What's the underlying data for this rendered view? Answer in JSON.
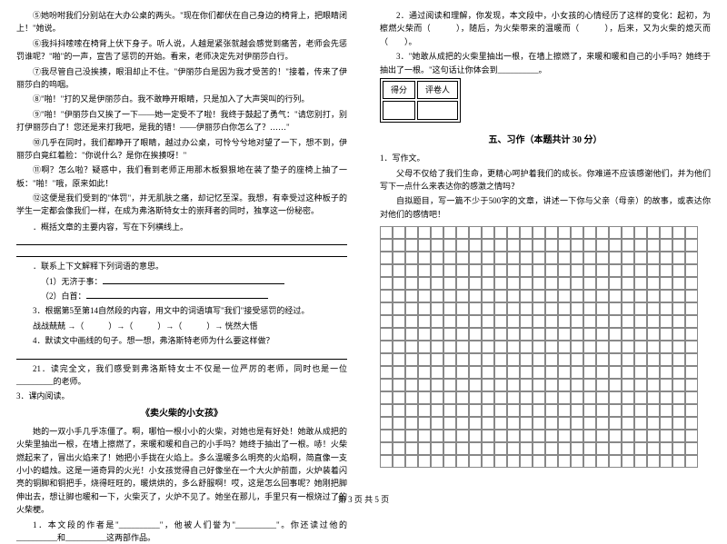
{
  "left": {
    "paragraphs": [
      "⑤她吩咐我们分别站在大办公桌的两头。\"现在你们都伏在自己身边的椅背上，把眼睛闭上！\"她说。",
      "⑥我抖抖嗦嗦在椅背上伏下身子。听人说，人越是紧张就越会感觉到痛苦，老师会先惩罚谁呢？\"啪\"的一声，宣告了惩罚的开始。看来，老师决定先对伊丽莎白行。",
      "⑦我尽管自己没挨揍，眼泪却止不住。\"伊丽莎白是因为我才受苦的！\"接着，传来了伊丽莎白的呜咽。",
      "⑧\"啪！\"打的又是伊丽莎白。我不敢睁开眼睛，只是加入了大声哭叫的行列。",
      "⑨\"啪！\"伊丽莎白又挨了一下——她一定受不了啦！我终于鼓起了勇气：\"请您别打，别打伊丽莎白了！您还是来打我吧，是我的错！——伊丽莎白你怎么了？……\"",
      "⑩几乎在同时，我们都睁开了眼睛，越过办公桌，可怜兮兮地对望了一下，想不到，伊丽莎白竟红着脸：\"你说什么？是你在挨揍呀！\"",
      "⑪啊？怎么啦？疑惑中，我们看到老师正用那木板狠狠地在装了垫子的座椅上抽了一板：\"啪！\"哦，原来如此！",
      "⑫这便是我们受到的\"体罚\"，并无肌肤之痛，却记忆至深。我想，有幸受过这种板子的学生一定都会像我们一样，在成为弗洛斯特女士的崇拜者的同时，独享这一份秘密。"
    ],
    "questions": [
      {
        "num": "1",
        "text": "．概括文章的主要内容，写在下列横线上。"
      },
      {
        "num": "2",
        "text": "．联系上下文解释下列词语的意思。"
      }
    ],
    "subq": [
      "（1）无济于事：",
      "（2）白首："
    ],
    "q3": "3．根据第5至第14自然段的内容，用文中的词语填写\"我们\"接受惩罚的经过。",
    "q3_flow": "战战兢兢 →（　　　）→（　　　）→（　　　）→ 恍然大悟",
    "q4": "4．默读文中画线的句子。想一想，弗洛斯特老师为什么要这样做？",
    "q21": "21．读完全文，我们感受到弗洛斯特女士不仅是一位严厉的老师，同时也是一位_________的老师。",
    "ksec": "3．课内阅读。",
    "story_title": "《卖火柴的小女孩》",
    "story": "她的一双小手几乎冻僵了。啊，哪怕一根小小的火柴，对她也是有好处！她敢从成把的火柴里抽出一根，在墙上擦燃了，来暖和暖和自己的小手吗？她终于抽出了一根。哧！火柴燃起来了，冒出火焰来了！她把小手拢在火焰上。多么温暖多么明亮的火焰啊，简直像一支小小的蜡烛。这是一道奇异的火光！小女孩觉得自己好像坐在一个大火炉前面，火炉装着闪亮的铜脚和铜把手，烧得旺旺的，暖烘烘的，多么舒服啊！哎，这是怎么回事呢？她刚把脚伸出去，想让脚也暖和一下，火柴灭了，火炉不见了。她坐在那儿，手里只有一根烧过了的火柴梗。",
    "kq1": "1．本文段的作者是\"__________\"，他被人们誉为\"__________\"。你还读过他的__________和__________这两部作品。"
  },
  "right": {
    "q2": "2．通过阅读和理解，你发现，本文段中，小女孩的心情经历了这样的变化：起初，为檫燃火柴而（　　　），随后，为火柴带来的温暖而（　　　），后来，又为火柴的熄灭而（　　）。",
    "q3": "3．\"她敢从成把的火柴里抽出一根，在墙上擦燃了，来暖和暖和自己的小手吗？她终于抽出了一根。\"这句话让你体会到__________。",
    "score_labels": [
      "得分",
      "评卷人"
    ],
    "section": "五、习作（本题共计 30 分）",
    "writing_num": "1．写作文。",
    "writing_prompt": [
      "父母不仅给了我们生命，更精心呵护着我们的成长。你难道不应该感谢他们，并为他们写下一点什么来表达你的感激之情吗？",
      "自拟题目，写一篇不少于500字的文章，讲述一下你与父亲（母亲）的故事，或表达你对他们的感情吧！"
    ]
  },
  "footer": "第 3 页 共 5 页",
  "grid": {
    "rows": 19,
    "cols": 25
  }
}
